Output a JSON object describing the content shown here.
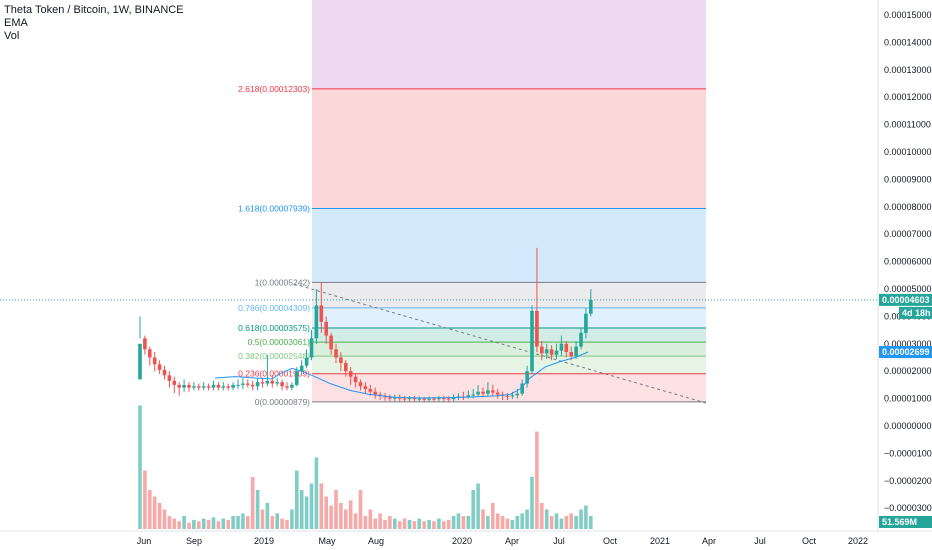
{
  "legend": {
    "symbol": "Theta Token / Bitcoin, 1W, BINANCE",
    "ema": "EMA",
    "vol": "Vol"
  },
  "price_axis": {
    "ticks": [
      "0.00015000",
      "0.00014000",
      "0.00013000",
      "0.00012000",
      "0.00011000",
      "0.00010000",
      "0.00009000",
      "0.00008000",
      "0.00007000",
      "0.00006000",
      "0.00005000",
      "0.00004000",
      "0.00003000",
      "0.00002000",
      "0.00001000",
      "0.00000000",
      "−0.00001000",
      "−0.00002000",
      "−0.00003000"
    ],
    "last_price": "0.00004603",
    "countdown": "4d 18h",
    "ema_value": "0.00002699",
    "volume_value": "51.569M"
  },
  "time_axis": [
    "Jun",
    "Sep",
    "2019",
    "May",
    "Aug",
    "2020",
    "Apr",
    "Jul",
    "Oct",
    "2021",
    "Apr",
    "Jul",
    "Oct",
    "2022"
  ],
  "fib_levels": [
    {
      "label": "0(0.00000879)",
      "value": 8.79e-06,
      "color": "#787b86"
    },
    {
      "label": "0.236(0.00001909)",
      "value": 1.909e-05,
      "color": "#f23645"
    },
    {
      "label": "0.382(0.00002548)",
      "value": 2.548e-05,
      "color": "#81c784"
    },
    {
      "label": "0.5(0.00003061)",
      "value": 3.061e-05,
      "color": "#4caf50"
    },
    {
      "label": "0.618(0.00003575)",
      "value": 3.575e-05,
      "color": "#089981"
    },
    {
      "label": "0.786(0.00004309)",
      "value": 4.309e-05,
      "color": "#64b5f6"
    },
    {
      "label": "1(0.00005242)",
      "value": 5.242e-05,
      "color": "#787b86"
    },
    {
      "label": "1.618(0.00007939)",
      "value": 7.939e-05,
      "color": "#2196f3"
    },
    {
      "label": "2.618(0.00012303)",
      "value": 0.00012303,
      "color": "#f23645"
    }
  ],
  "colors": {
    "up": "#26a69a",
    "down": "#ef5350",
    "ema": "#2196f3",
    "vol_up": "#7fcdc4",
    "vol_down": "#f7a9a7",
    "last_price_line": "#26a69a",
    "trend_line": "#787b86"
  },
  "chart_data": {
    "type": "candlestick",
    "title": "Theta Token / Bitcoin, 1W, BINANCE",
    "y_range": [
      -3.3e-05,
      1.55e-05
    ],
    "price_path": [
      [
        1.7e-05,
        3e-05,
        4e-05,
        3.2e-05
      ],
      [
        3.2e-05,
        2.8e-05,
        3.3e-05,
        2.6e-05
      ],
      [
        2.8e-05,
        2.5e-05,
        2.9e-05,
        2.2e-05
      ],
      [
        2.5e-05,
        2.25e-05,
        2.7e-05,
        2e-05
      ],
      [
        2.25e-05,
        2.05e-05,
        2.4e-05,
        1.9e-05
      ],
      [
        2.05e-05,
        1.85e-05,
        2.2e-05,
        1.7e-05
      ],
      [
        1.85e-05,
        1.65e-05,
        2e-05,
        1.4e-05
      ],
      [
        1.65e-05,
        1.5e-05,
        1.8e-05,
        1.2e-05
      ],
      [
        1.5e-05,
        1.4e-05,
        1.6e-05,
        1.1e-05
      ],
      [
        1.4e-05,
        1.5e-05,
        1.7e-05,
        1.25e-05
      ],
      [
        1.5e-05,
        1.4e-05,
        1.6e-05,
        1.25e-05
      ],
      [
        1.4e-05,
        1.45e-05,
        1.6e-05,
        1.3e-05
      ],
      [
        1.45e-05,
        1.4e-05,
        1.55e-05,
        1.3e-05
      ],
      [
        1.4e-05,
        1.45e-05,
        1.6e-05,
        1.3e-05
      ],
      [
        1.45e-05,
        1.4e-05,
        1.55e-05,
        1.3e-05
      ],
      [
        1.4e-05,
        1.5e-05,
        1.65e-05,
        1.3e-05
      ],
      [
        1.5e-05,
        1.4e-05,
        1.6e-05,
        1.3e-05
      ],
      [
        1.4e-05,
        1.45e-05,
        1.6e-05,
        1.3e-05
      ],
      [
        1.45e-05,
        1.4e-05,
        1.55e-05,
        1.3e-05
      ],
      [
        1.4e-05,
        1.5e-05,
        1.6e-05,
        1.3e-05
      ],
      [
        1.5e-05,
        1.5e-05,
        1.7e-05,
        1.35e-05
      ],
      [
        1.5e-05,
        1.55e-05,
        1.75e-05,
        1.35e-05
      ],
      [
        1.55e-05,
        1.5e-05,
        1.7e-05,
        1.4e-05
      ],
      [
        1.5e-05,
        1.45e-05,
        1.65e-05,
        1.3e-05
      ],
      [
        1.45e-05,
        1.6e-05,
        1.75e-05,
        1.3e-05
      ],
      [
        1.6e-05,
        1.55e-05,
        1.75e-05,
        1.4e-05
      ],
      [
        1.55e-05,
        1.65e-05,
        2.6e-05,
        1.45e-05
      ],
      [
        1.65e-05,
        1.55e-05,
        1.85e-05,
        1.4e-05
      ],
      [
        1.55e-05,
        1.6e-05,
        1.75e-05,
        1.45e-05
      ],
      [
        1.6e-05,
        1.45e-05,
        1.7e-05,
        1.3e-05
      ],
      [
        1.45e-05,
        1.4e-05,
        1.6e-05,
        1.3e-05
      ],
      [
        1.4e-05,
        1.5e-05,
        1.6e-05,
        1.3e-05
      ],
      [
        1.5e-05,
        2e-05,
        2.15e-05,
        1.45e-05
      ],
      [
        2e-05,
        2.2e-05,
        2.4e-05,
        1.9e-05
      ],
      [
        2.2e-05,
        2.5e-05,
        2.8e-05,
        2.1e-05
      ],
      [
        2.5e-05,
        3.2e-05,
        3.5e-05,
        2.4e-05
      ],
      [
        3.2e-05,
        4.4e-05,
        5e-05,
        3e-05
      ],
      [
        4.4e-05,
        3.8e-05,
        5.24e-05,
        3.4e-05
      ],
      [
        3.8e-05,
        3.3e-05,
        4e-05,
        3e-05
      ],
      [
        3.3e-05,
        2.8e-05,
        3.4e-05,
        2.6e-05
      ],
      [
        2.8e-05,
        2.5e-05,
        3e-05,
        2.3e-05
      ],
      [
        2.5e-05,
        2.3e-05,
        2.7e-05,
        2e-05
      ],
      [
        2.3e-05,
        2e-05,
        2.4e-05,
        1.8e-05
      ],
      [
        2e-05,
        1.8e-05,
        2.15e-05,
        1.5e-05
      ],
      [
        1.8e-05,
        1.6e-05,
        1.9e-05,
        1.4e-05
      ],
      [
        1.6e-05,
        1.45e-05,
        1.7e-05,
        1.3e-05
      ],
      [
        1.45e-05,
        1.35e-05,
        1.6e-05,
        1.2e-05
      ],
      [
        1.35e-05,
        1.25e-05,
        1.5e-05,
        1.1e-05
      ],
      [
        1.25e-05,
        1.15e-05,
        1.4e-05,
        1e-05
      ],
      [
        1.15e-05,
        1.1e-05,
        1.25e-05,
        9.5e-06
      ],
      [
        1.1e-05,
        1.05e-05,
        1.2e-05,
        9.2e-06
      ],
      [
        1.05e-05,
        1e-05,
        1.15e-05,
        9e-06
      ],
      [
        1e-05,
        1.05e-05,
        1.15e-05,
        9e-06
      ],
      [
        1.05e-05,
        1e-05,
        1.15e-05,
        9e-06
      ],
      [
        1e-05,
        9.8e-06,
        1.1e-05,
        8.8e-06
      ],
      [
        9.8e-06,
        1.02e-05,
        1.1e-05,
        9e-06
      ],
      [
        1.02e-05,
        9.8e-06,
        1.1e-05,
        9e-06
      ],
      [
        9.8e-06,
        1e-05,
        1.08e-05,
        9e-06
      ],
      [
        1e-05,
        9.6e-06,
        1.06e-05,
        8.8e-06
      ],
      [
        9.6e-06,
        1e-05,
        1.08e-05,
        8.8e-06
      ],
      [
        1e-05,
        9.8e-06,
        1.06e-05,
        9e-06
      ],
      [
        9.8e-06,
        1.02e-05,
        1.1e-05,
        9e-06
      ],
      [
        1.02e-05,
        1e-05,
        1.1e-05,
        9e-06
      ],
      [
        1e-05,
        9.8e-06,
        1.08e-05,
        8.8e-06
      ],
      [
        9.8e-06,
        1.04e-05,
        1.15e-05,
        9e-06
      ],
      [
        1.04e-05,
        1.08e-05,
        1.2e-05,
        9.5e-06
      ],
      [
        1.08e-05,
        1.05e-05,
        1.25e-05,
        9.5e-06
      ],
      [
        1.05e-05,
        1.12e-05,
        1.3e-05,
        1e-05
      ],
      [
        1.12e-05,
        1.15e-05,
        1.35e-05,
        1e-05
      ],
      [
        1.15e-05,
        1.25e-05,
        1.5e-05,
        1.05e-05
      ],
      [
        1.25e-05,
        1.18e-05,
        1.4e-05,
        1.05e-05
      ],
      [
        1.18e-05,
        1.3e-05,
        1.6e-05,
        1.1e-05
      ],
      [
        1.3e-05,
        1.22e-05,
        1.5e-05,
        1.1e-05
      ],
      [
        1.22e-05,
        1.15e-05,
        1.35e-05,
        1e-05
      ],
      [
        1.15e-05,
        1.1e-05,
        1.25e-05,
        9.5e-06
      ],
      [
        1.1e-05,
        1.08e-05,
        1.2e-05,
        9.5e-06
      ],
      [
        1.08e-05,
        1.12e-05,
        1.25e-05,
        9.8e-06
      ],
      [
        1.12e-05,
        1.18e-05,
        1.35e-05,
        1e-05
      ],
      [
        1.18e-05,
        1.55e-05,
        1.7e-05,
        1.1e-05
      ],
      [
        1.55e-05,
        2e-05,
        2.2e-05,
        1.4e-05
      ],
      [
        2e-05,
        4.2e-05,
        4.4e-05,
        1.9e-05
      ],
      [
        4.2e-05,
        2.9e-05,
        6.5e-05,
        2.7e-05
      ],
      [
        2.9e-05,
        2.65e-05,
        3.1e-05,
        2.4e-05
      ],
      [
        2.65e-05,
        2.8e-05,
        3e-05,
        2.45e-05
      ],
      [
        2.8e-05,
        2.6e-05,
        2.95e-05,
        2.4e-05
      ],
      [
        2.6e-05,
        2.75e-05,
        3e-05,
        2.45e-05
      ],
      [
        2.75e-05,
        3e-05,
        3.3e-05,
        2.55e-05
      ],
      [
        3e-05,
        2.7e-05,
        3.1e-05,
        2.5e-05
      ],
      [
        2.7e-05,
        2.55e-05,
        2.9e-05,
        2.4e-05
      ],
      [
        2.55e-05,
        2.9e-05,
        3.1e-05,
        2.45e-05
      ],
      [
        2.9e-05,
        3.4e-05,
        3.6e-05,
        2.8e-05
      ],
      [
        3.4e-05,
        4.1e-05,
        4.3e-05,
        3.2e-05
      ],
      [
        4.1e-05,
        4.6e-05,
        5e-05,
        4e-05
      ]
    ],
    "ema_path": [
      [
        1.75e-05,
        1.78e-05
      ],
      [
        1.8e-05,
        1.82e-05
      ],
      [
        1.78e-05,
        1.75e-05
      ],
      [
        1.7e-05,
        1.65e-05
      ],
      [
        1.72e-05,
        1.85e-05
      ],
      [
        1.95e-05,
        2.1e-05
      ],
      [
        2.05e-05,
        1.85e-05
      ],
      [
        1.7e-05,
        1.5e-05
      ],
      [
        1.35e-05,
        1.22e-05
      ],
      [
        1.15e-05,
        1.1e-05
      ],
      [
        1.06e-05,
        1.02e-05
      ],
      [
        1.02e-05,
        1.04e-05
      ],
      [
        1.03e-05,
        1.02e-05
      ],
      [
        1.05e-05,
        1.08e-05
      ],
      [
        1.12e-05,
        1.18e-05
      ],
      [
        1.15e-05,
        1.12e-05
      ],
      [
        1.12e-05,
        1.18e-05
      ],
      [
        1.4e-05,
        1.8e-05
      ],
      [
        2.1e-05,
        2.3e-05
      ],
      [
        2.4e-05,
        2.5e-05
      ],
      [
        2.58e-05,
        2.7e-05
      ]
    ],
    "vol_path": [
      0.95,
      0.45,
      0.3,
      0.25,
      0.2,
      0.15,
      0.1,
      0.08,
      0.06,
      0.1,
      0.05,
      0.07,
      0.06,
      0.08,
      0.07,
      0.09,
      0.06,
      0.08,
      0.07,
      0.1,
      0.1,
      0.12,
      0.1,
      0.4,
      0.3,
      0.15,
      0.2,
      0.1,
      0.12,
      0.08,
      0.07,
      0.15,
      0.45,
      0.3,
      0.25,
      0.35,
      0.55,
      0.35,
      0.25,
      0.18,
      0.3,
      0.2,
      0.15,
      0.22,
      0.12,
      0.3,
      0.1,
      0.15,
      0.08,
      0.12,
      0.07,
      0.1,
      0.08,
      0.06,
      0.08,
      0.07,
      0.06,
      0.08,
      0.06,
      0.07,
      0.06,
      0.08,
      0.06,
      0.07,
      0.1,
      0.12,
      0.1,
      0.1,
      0.3,
      0.35,
      0.15,
      0.1,
      0.2,
      0.12,
      0.1,
      0.08,
      0.07,
      0.1,
      0.12,
      0.15,
      0.4,
      0.75,
      0.2,
      0.15,
      0.1,
      0.12,
      0.08,
      0.1,
      0.12,
      0.1,
      0.15,
      0.18,
      0.1
    ]
  }
}
